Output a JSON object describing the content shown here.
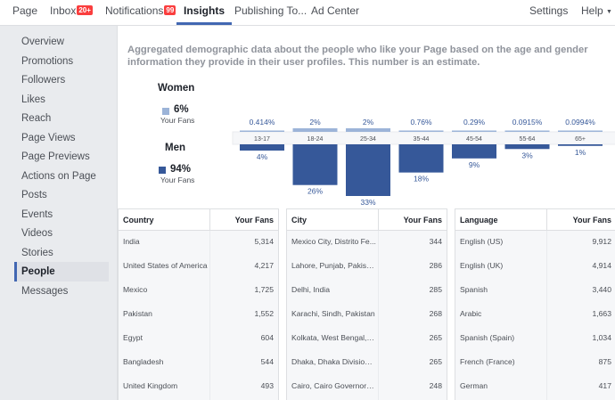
{
  "nav": {
    "items": [
      {
        "label": "Page"
      },
      {
        "label": "Inbox",
        "badge": "20+"
      },
      {
        "label": "Notifications",
        "badge": "99"
      },
      {
        "label": "Insights",
        "active": true
      },
      {
        "label": "Publishing To..."
      },
      {
        "label": "Ad Center"
      }
    ],
    "settings": "Settings",
    "help": "Help"
  },
  "sidebar": {
    "items": [
      {
        "label": "Overview"
      },
      {
        "label": "Promotions"
      },
      {
        "label": "Followers"
      },
      {
        "label": "Likes"
      },
      {
        "label": "Reach"
      },
      {
        "label": "Page Views"
      },
      {
        "label": "Page Previews"
      },
      {
        "label": "Actions on Page"
      },
      {
        "label": "Posts"
      },
      {
        "label": "Events"
      },
      {
        "label": "Videos"
      },
      {
        "label": "Stories"
      },
      {
        "label": "People",
        "active": true
      },
      {
        "label": "Messages"
      }
    ]
  },
  "main": {
    "description": "Aggregated demographic data about the people who like your Page based on the age and gender information they provide in their user profiles. This number is an estimate.",
    "women": {
      "label": "Women",
      "percent": "6%",
      "sub": "Your Fans",
      "color": "#9cb4d8"
    },
    "men": {
      "label": "Men",
      "percent": "94%",
      "sub": "Your Fans",
      "color": "#365899"
    }
  },
  "chart_data": {
    "type": "bar",
    "categories": [
      "13-17",
      "18-24",
      "25-34",
      "35-44",
      "45-54",
      "55-64",
      "65+"
    ],
    "series": [
      {
        "name": "Women",
        "values": [
          0.414,
          2,
          2,
          0.76,
          0.29,
          0.0915,
          0.0994
        ],
        "labels": [
          "0.414%",
          "2%",
          "2%",
          "0.76%",
          "0.29%",
          "0.0915%",
          "0.0994%"
        ],
        "color": "#9cb4d8"
      },
      {
        "name": "Men",
        "values": [
          4,
          26,
          33,
          18,
          9,
          3,
          1
        ],
        "labels": [
          "4%",
          "26%",
          "33%",
          "18%",
          "9%",
          "3%",
          "1%"
        ],
        "color": "#365899"
      }
    ]
  },
  "tables": [
    {
      "col1": "Country",
      "col2": "Your Fans",
      "rows": [
        {
          "name": "India",
          "value": "5,314"
        },
        {
          "name": "United States of America",
          "value": "4,217"
        },
        {
          "name": "Mexico",
          "value": "1,725"
        },
        {
          "name": "Pakistan",
          "value": "1,552"
        },
        {
          "name": "Egypt",
          "value": "604"
        },
        {
          "name": "Bangladesh",
          "value": "544"
        },
        {
          "name": "United Kingdom",
          "value": "493"
        }
      ]
    },
    {
      "col1": "City",
      "col2": "Your Fans",
      "rows": [
        {
          "name": "Mexico City, Distrito Fe...",
          "value": "344"
        },
        {
          "name": "Lahore, Punjab, Pakistan",
          "value": "286"
        },
        {
          "name": "Delhi, India",
          "value": "285"
        },
        {
          "name": "Karachi, Sindh, Pakistan",
          "value": "268"
        },
        {
          "name": "Kolkata, West Bengal, I...",
          "value": "265"
        },
        {
          "name": "Dhaka, Dhaka Division,...",
          "value": "265"
        },
        {
          "name": "Cairo, Cairo Governora...",
          "value": "248"
        }
      ]
    },
    {
      "col1": "Language",
      "col2": "Your Fans",
      "rows": [
        {
          "name": "English (US)",
          "value": "9,912"
        },
        {
          "name": "English (UK)",
          "value": "4,914"
        },
        {
          "name": "Spanish",
          "value": "3,440"
        },
        {
          "name": "Arabic",
          "value": "1,663"
        },
        {
          "name": "Spanish (Spain)",
          "value": "1,034"
        },
        {
          "name": "French (France)",
          "value": "875"
        },
        {
          "name": "German",
          "value": "417"
        }
      ]
    }
  ]
}
